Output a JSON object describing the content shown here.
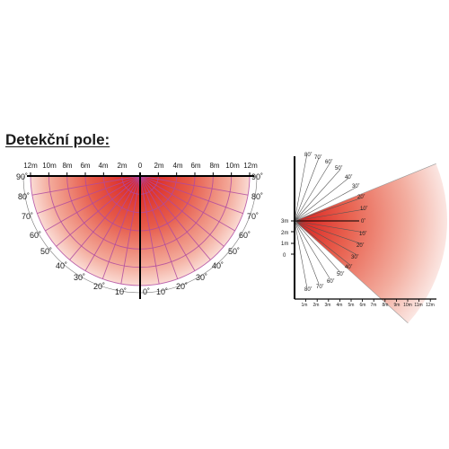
{
  "title": "Detekční pole:",
  "top_view": {
    "distance_labels_left": [
      "12m",
      "10m",
      "8m",
      "6m",
      "4m",
      "2m"
    ],
    "center_label": "0",
    "distance_labels_right": [
      "2m",
      "4m",
      "6m",
      "8m",
      "10m",
      "12m"
    ],
    "angle_labels_left": [
      "90˚",
      "80˚",
      "70˚",
      "60˚",
      "50˚",
      "40˚",
      "30˚",
      "20˚",
      "10˚"
    ],
    "angle_labels_right": [
      "90˚",
      "80˚",
      "70˚",
      "60˚",
      "50˚",
      "40˚",
      "30˚",
      "20˚",
      "10˚"
    ],
    "zero_label": "0˚",
    "colors": {
      "hot": "#d81c1c",
      "mid": "#ef8878",
      "grid": "#b04aa0",
      "axis": "#000000"
    }
  },
  "side_view": {
    "height_labels": [
      "3m",
      "2m",
      "1m",
      "0"
    ],
    "upper_angle_labels": [
      "80˚",
      "70˚",
      "60˚",
      "50˚",
      "40˚",
      "30˚",
      "20˚",
      "10˚"
    ],
    "middle_angle_labels": [
      "0˚",
      "10˚",
      "20˚",
      "30˚"
    ],
    "lower_angle_labels": [
      "40˚",
      "50˚",
      "60˚",
      "70˚",
      "80˚"
    ],
    "distance_labels": [
      "1m",
      "2m",
      "3m",
      "4m",
      "5m",
      "6m",
      "7m",
      "8m",
      "9m",
      "10m",
      "11m",
      "12m"
    ]
  }
}
